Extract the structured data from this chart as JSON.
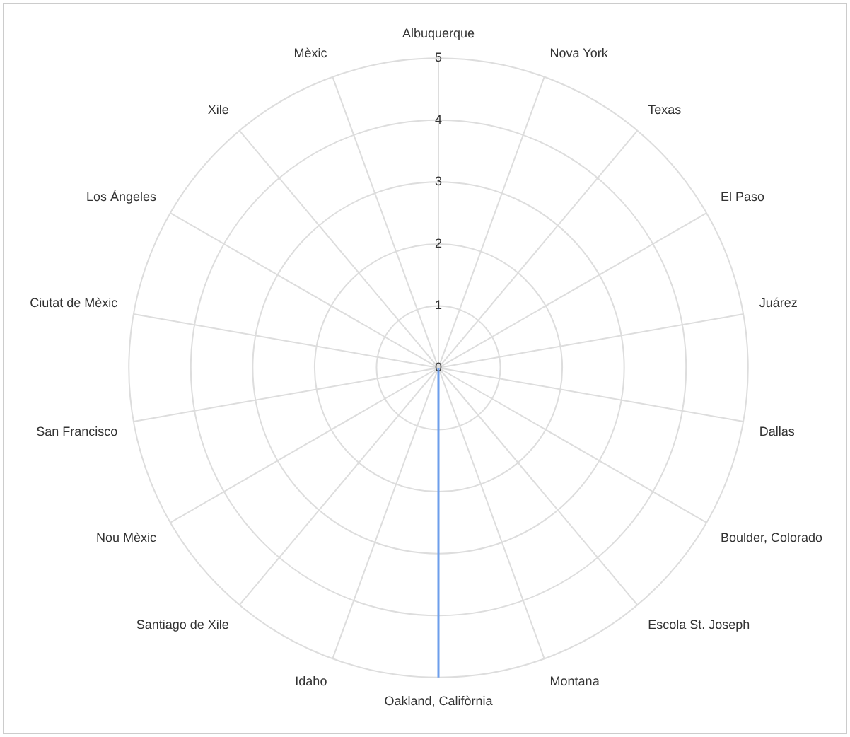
{
  "chart_data": {
    "type": "radar",
    "categories": [
      "Albuquerque",
      "Nova York",
      "Texas",
      "El Paso",
      "Juárez",
      "Dallas",
      "Boulder, Colorado",
      "Escola St. Joseph",
      "Montana",
      "Oakland, Califòrnia",
      "Idaho",
      "Santiago de Xile",
      "Nou Mèxic",
      "San Francisco",
      "Ciutat de Mèxic",
      "Los Ángeles",
      "Xile",
      "Mèxic"
    ],
    "series": [
      {
        "color": "#6d9eeb",
        "values": [
          0,
          0,
          0,
          0,
          0,
          0,
          0,
          0,
          0,
          5,
          0,
          0,
          0,
          0,
          0,
          0,
          0,
          0
        ]
      }
    ],
    "ylim": [
      0,
      5
    ],
    "yticks": [
      0,
      1,
      2,
      3,
      4,
      5
    ],
    "grid": true,
    "legend": false,
    "marker": "none",
    "line_style": "solid"
  }
}
